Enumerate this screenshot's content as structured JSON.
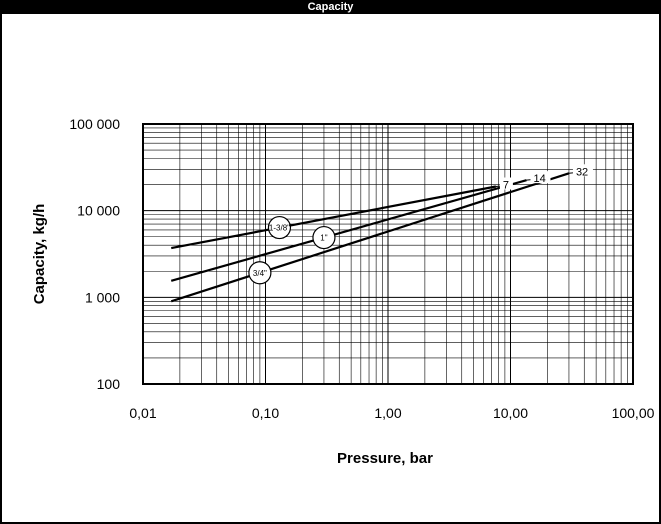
{
  "header": {
    "title": "Capacity"
  },
  "chart_data": {
    "type": "line",
    "xscale": "log",
    "yscale": "log",
    "xlim": [
      0.01,
      100
    ],
    "ylim": [
      100,
      100000
    ],
    "grid": true,
    "xlabel": "Pressure, bar",
    "ylabel": "Capacity, kg/h",
    "x_tick_labels": [
      "0,01",
      "0,10",
      "1,00",
      "10,00",
      "100,00"
    ],
    "y_tick_labels": [
      "100",
      "1 000",
      "10 000",
      "100 000"
    ],
    "series": [
      {
        "name": "1-3/8\"",
        "end_label": "7",
        "x": [
          0.017,
          7.6
        ],
        "y": [
          3700,
          19000
        ]
      },
      {
        "name": "1\"",
        "end_label": "14",
        "x": [
          0.017,
          13.5
        ],
        "y": [
          1550,
          22500
        ]
      },
      {
        "name": "3/4\"",
        "end_label": "32",
        "x": [
          0.017,
          30
        ],
        "y": [
          900,
          27000
        ]
      }
    ]
  }
}
